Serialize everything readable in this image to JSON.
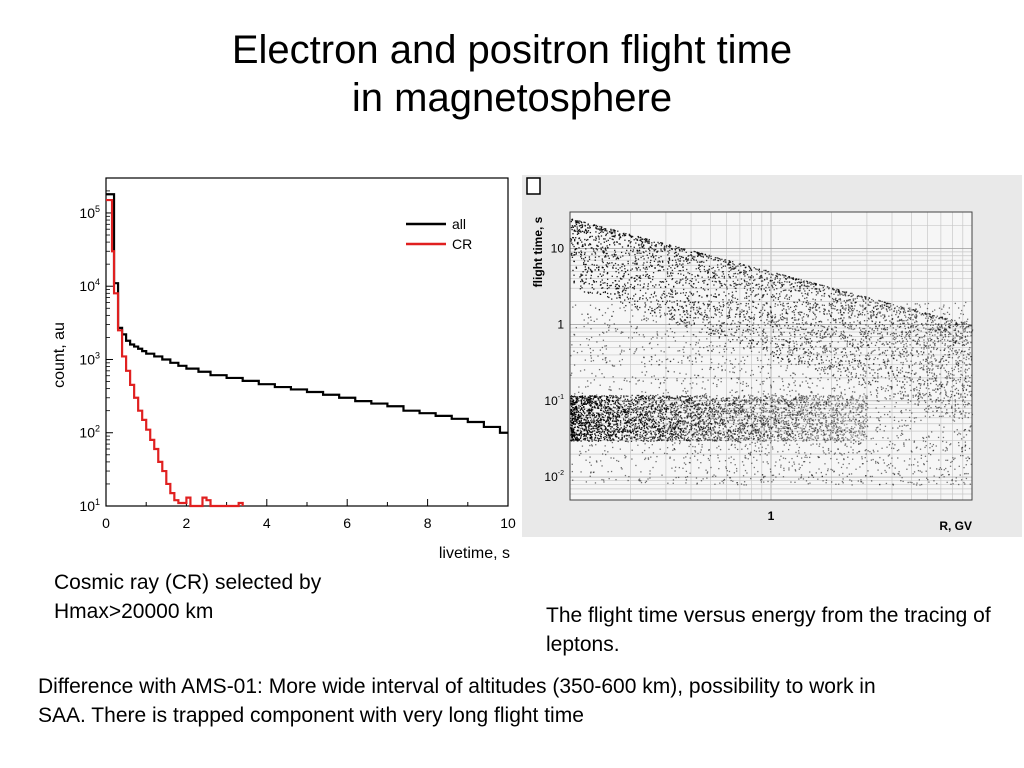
{
  "slide": {
    "title_line1": "Electron and positron  flight time",
    "title_line2": "in magnetosphere",
    "caption_left": "Cosmic ray (CR) selected by Hmax>20000  km",
    "caption_right": "The flight time versus energy from the tracing of leptons.",
    "caption_bottom": "Difference with AMS-01: More wide interval of altitudes (350-600 km), possibility to work in SAA. There is trapped component with very long flight time"
  },
  "chart_data": [
    {
      "type": "line",
      "xlabel": "livetime, s",
      "ylabel": "count, au",
      "xlim": [
        0,
        10
      ],
      "ylim": [
        10,
        300000
      ],
      "y_scale": "log",
      "x_ticks": [
        "0",
        "2",
        "4",
        "6",
        "8",
        "10"
      ],
      "y_ticks": [
        {
          "base": "10",
          "exp": "1",
          "value": 10
        },
        {
          "base": "10",
          "exp": "2",
          "value": 100
        },
        {
          "base": "10",
          "exp": "3",
          "value": 1000
        },
        {
          "base": "10",
          "exp": "4",
          "value": 10000
        },
        {
          "base": "10",
          "exp": "5",
          "value": 100000
        }
      ],
      "legend_position": "top-right",
      "series": [
        {
          "name": "all",
          "color": "#000000",
          "x": [
            0.0,
            0.1,
            0.2,
            0.3,
            0.4,
            0.5,
            0.6,
            0.7,
            0.8,
            0.9,
            1.0,
            1.2,
            1.4,
            1.6,
            1.8,
            2.0,
            2.3,
            2.6,
            3.0,
            3.4,
            3.8,
            4.2,
            4.6,
            5.0,
            5.4,
            5.8,
            6.2,
            6.6,
            7.0,
            7.4,
            7.8,
            8.2,
            8.6,
            9.0,
            9.4,
            9.8,
            10.0
          ],
          "y": [
            180000,
            180000,
            11000,
            2700,
            2200,
            1800,
            1600,
            1500,
            1400,
            1300,
            1200,
            1100,
            1000,
            900,
            820,
            750,
            680,
            610,
            560,
            510,
            460,
            420,
            390,
            360,
            330,
            300,
            270,
            250,
            230,
            200,
            185,
            170,
            155,
            140,
            120,
            100,
            100
          ]
        },
        {
          "name": "CR",
          "color": "#e02020",
          "x": [
            0.0,
            0.1,
            0.15,
            0.2,
            0.3,
            0.4,
            0.5,
            0.6,
            0.7,
            0.8,
            0.9,
            1.0,
            1.1,
            1.2,
            1.3,
            1.4,
            1.5,
            1.6,
            1.7,
            1.8,
            1.9,
            2.0,
            2.1,
            2.2,
            2.3,
            2.4,
            2.5,
            2.6,
            2.7,
            3.2,
            3.3,
            3.4
          ],
          "y": [
            150000,
            150000,
            30000,
            8000,
            2500,
            1100,
            700,
            450,
            300,
            200,
            150,
            110,
            80,
            60,
            40,
            30,
            20,
            15,
            12,
            11,
            11,
            13,
            10,
            10,
            10,
            13,
            12,
            10,
            10,
            10,
            11,
            10
          ]
        }
      ]
    },
    {
      "type": "scatter",
      "xlabel": "R, GV",
      "ylabel": "flight time, s",
      "x_scale": "log",
      "y_scale": "log",
      "xlim": [
        0.1,
        10
      ],
      "ylim": [
        0.005,
        30
      ],
      "grid": true,
      "x_ticks": [
        {
          "label": "1",
          "value": 1
        }
      ],
      "y_ticks": [
        {
          "base": "10",
          "exp": "",
          "value": 10
        },
        {
          "base": "1",
          "exp": "",
          "value": 1
        },
        {
          "base": "10",
          "exp": "-1",
          "value": 0.1
        },
        {
          "base": "10",
          "exp": "-2",
          "value": 0.01
        }
      ],
      "regions": [
        {
          "type": "diagonal-band",
          "from": [
            0.1,
            25
          ],
          "to": [
            10,
            1.0
          ]
        },
        {
          "type": "diffuse-mass",
          "x_range": [
            0.1,
            10
          ],
          "y_range": [
            0.008,
            2
          ]
        },
        {
          "type": "dense-horizontal-band",
          "x_range": [
            0.1,
            3
          ],
          "y_range": [
            0.03,
            0.12
          ]
        }
      ]
    }
  ]
}
